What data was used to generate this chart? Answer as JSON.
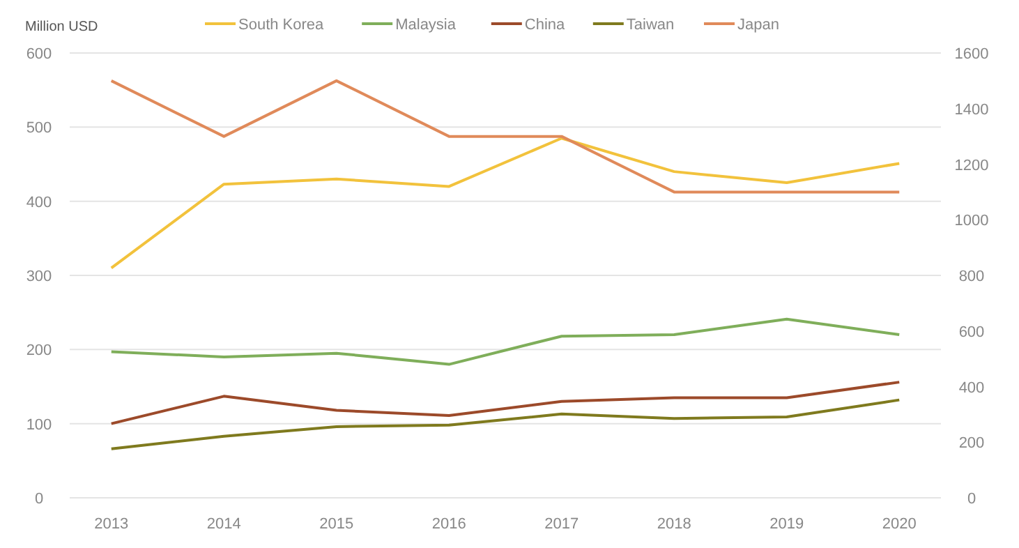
{
  "chart_data": {
    "type": "line",
    "ylabel": "Million USD",
    "categories": [
      "2013",
      "2014",
      "2015",
      "2016",
      "2017",
      "2018",
      "2019",
      "2020"
    ],
    "ylim": [
      0,
      600
    ],
    "yticks": [
      0,
      100,
      200,
      300,
      400,
      500,
      600
    ],
    "y2lim": [
      0,
      1600
    ],
    "y2ticks": [
      0,
      200,
      400,
      600,
      800,
      1000,
      1200,
      1400,
      1600
    ],
    "grid": "y",
    "legend": "top",
    "marker": "none",
    "line_style": "solid",
    "series": [
      {
        "name": "South Korea",
        "color": "#f2c23c",
        "values": [
          310,
          423,
          430,
          420,
          485,
          440,
          425,
          451
        ]
      },
      {
        "name": "Malaysia",
        "color": "#7fae5a",
        "values": [
          197,
          190,
          195,
          180,
          218,
          220,
          241,
          220
        ]
      },
      {
        "name": "China",
        "color": "#9c4a2a",
        "values": [
          100,
          137,
          118,
          111,
          130,
          135,
          135,
          156
        ]
      },
      {
        "name": "Taiwan",
        "color": "#7f7a1e",
        "values": [
          66,
          83,
          96,
          98,
          113,
          107,
          109,
          132
        ]
      },
      {
        "name": "Japan",
        "color": "#e08a5a",
        "axis": "y2",
        "values": [
          1500,
          1300,
          1500,
          1300,
          1300,
          1100,
          1100,
          1100
        ]
      }
    ]
  }
}
